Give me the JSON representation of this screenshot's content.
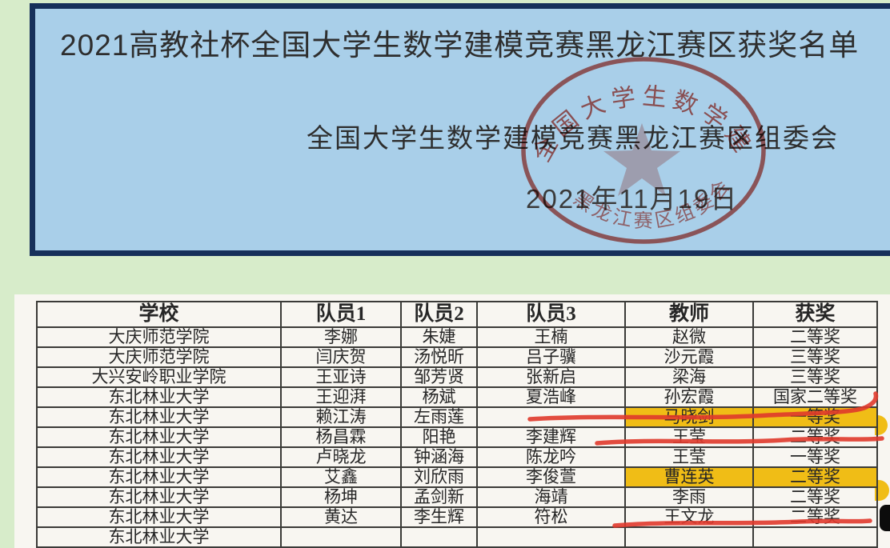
{
  "colors": {
    "page_bg": "#d7ecca",
    "panel_blue": "#a9cfe9",
    "panel_border": "#16305a",
    "highlight": "#f0bd16",
    "red_mark": "#e03a2c",
    "stamp_red": "#c7463d"
  },
  "header": {
    "title": "2021高教社杯全国大学生数学建模竞赛黑龙江赛区获奖名单",
    "organization": "全国大学生数学建模竞赛黑龙江赛区组委会",
    "date": "2021年11月19日"
  },
  "stamp": {
    "shape": "red-circular-seal",
    "text_top": "全国大学生数学建模",
    "text_bottom": "黑龙江赛区组委会"
  },
  "table": {
    "columns": [
      "学校",
      "队员1",
      "队员2",
      "队员3",
      "教师",
      "获奖"
    ],
    "rows": [
      {
        "school": "大庆师范学院",
        "member1": "李娜",
        "member2": "朱婕",
        "member3": "王楠",
        "teacher": "赵微",
        "award": "二等奖"
      },
      {
        "school": "大庆师范学院",
        "member1": "闫庆贺",
        "member2": "汤悦昕",
        "member3": "吕子骥",
        "teacher": "沙元霞",
        "award": "三等奖"
      },
      {
        "school": "大兴安岭职业学院",
        "member1": "王亚诗",
        "member2": "邹芳贤",
        "member3": "张新启",
        "teacher": "梁海",
        "award": "三等奖"
      },
      {
        "school": "东北林业大学",
        "member1": "王迎湃",
        "member2": "杨斌",
        "member3": "夏浩峰",
        "teacher": "孙宏霞",
        "award": "国家二等奖",
        "red_underline": true
      },
      {
        "school": "东北林业大学",
        "member1": "赖江涛",
        "member2": "左雨莲",
        "member3": "",
        "teacher": "马晓剑",
        "award": "一等奖",
        "highlighted": [
          "teacher",
          "award"
        ],
        "red_underline": true
      },
      {
        "school": "东北林业大学",
        "member1": "杨昌霖",
        "member2": "阳艳",
        "member3": "李建辉",
        "teacher": "王莹",
        "award": "二等奖"
      },
      {
        "school": "东北林业大学",
        "member1": "卢晓龙",
        "member2": "钟涵海",
        "member3": "陈龙吟",
        "teacher": "王莹",
        "award": "一等奖"
      },
      {
        "school": "东北林业大学",
        "member1": "艾鑫",
        "member2": "刘欣雨",
        "member3": "李俊萱",
        "teacher": "曹连英",
        "award": "二等奖",
        "highlighted": [
          "teacher",
          "award"
        ]
      },
      {
        "school": "东北林业大学",
        "member1": "杨坤",
        "member2": "孟剑新",
        "member3": "海靖",
        "teacher": "李雨",
        "award": "二等奖",
        "red_underline": true
      },
      {
        "school": "东北林业大学",
        "member1": "黄达",
        "member2": "李生辉",
        "member3": "符松",
        "teacher": "王文龙",
        "award": "二等奖"
      },
      {
        "school": "东北林业大学",
        "member1": "",
        "member2": "",
        "member3": "",
        "teacher": "",
        "award": "",
        "partial_row": true
      }
    ]
  }
}
